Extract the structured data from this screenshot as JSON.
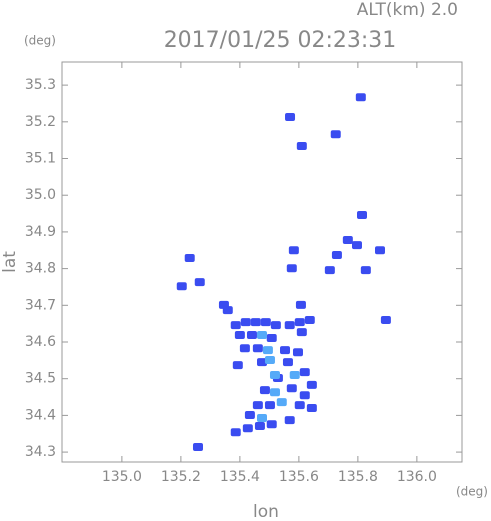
{
  "chart_data": {
    "type": "scatter",
    "subtitle": "ALT(km) 2.0",
    "title": "2017/01/25 02:23:31",
    "y_unit": "(deg)",
    "x_unit": "(deg)",
    "y_label": "lat",
    "x_label": "lon",
    "xlim": [
      134.797,
      136.153
    ],
    "ylim": [
      34.273,
      35.363
    ],
    "xticks": [
      {
        "value": 135.0,
        "label": "135.0"
      },
      135.2,
      135.4,
      135.6,
      135.8,
      {
        "value": 136.0,
        "label": "136.0"
      }
    ],
    "yticks": [
      34.3,
      34.4,
      34.5,
      34.6,
      34.7,
      34.8,
      34.9,
      {
        "value": 35.0,
        "label": "35.0"
      },
      35.1,
      35.2,
      35.3
    ],
    "series": [
      {
        "color": "#3a4cf0",
        "x": [
          135.81,
          135.57,
          135.725,
          135.61,
          135.814,
          135.766,
          135.797,
          135.875,
          135.729,
          135.705,
          135.583,
          135.576,
          135.827,
          135.23,
          135.264,
          135.203,
          135.346,
          135.895,
          135.607,
          135.386,
          135.42,
          135.454,
          135.488,
          135.522,
          135.569,
          135.603,
          135.637,
          135.4,
          135.441,
          135.508,
          135.61,
          135.417,
          135.461,
          135.553,
          135.597,
          135.475,
          135.563,
          135.529,
          135.62,
          135.644,
          135.485,
          135.576,
          135.62,
          135.461,
          135.502,
          135.603,
          135.644,
          135.434,
          135.569,
          135.386,
          135.427,
          135.468,
          135.508,
          135.258,
          135.393,
          135.359
        ],
        "y": [
          35.267,
          35.213,
          35.166,
          35.134,
          34.946,
          34.878,
          34.864,
          34.85,
          34.837,
          34.796,
          34.85,
          34.801,
          34.796,
          34.829,
          34.763,
          34.752,
          34.701,
          34.66,
          34.701,
          34.646,
          34.654,
          34.654,
          34.654,
          34.646,
          34.646,
          34.654,
          34.66,
          34.619,
          34.619,
          34.611,
          34.627,
          34.583,
          34.583,
          34.578,
          34.572,
          34.545,
          34.545,
          34.502,
          34.518,
          34.483,
          34.469,
          34.474,
          34.455,
          34.428,
          34.428,
          34.428,
          34.42,
          34.401,
          34.387,
          34.354,
          34.365,
          34.371,
          34.376,
          34.314,
          34.537,
          34.687
        ]
      },
      {
        "color": "#55aaf8",
        "x": [
          135.475,
          135.495,
          135.586,
          135.519,
          135.542,
          135.519,
          135.475,
          135.502
        ],
        "y": [
          34.619,
          34.578,
          34.51,
          34.51,
          34.436,
          34.463,
          34.393,
          34.551
        ]
      }
    ]
  }
}
